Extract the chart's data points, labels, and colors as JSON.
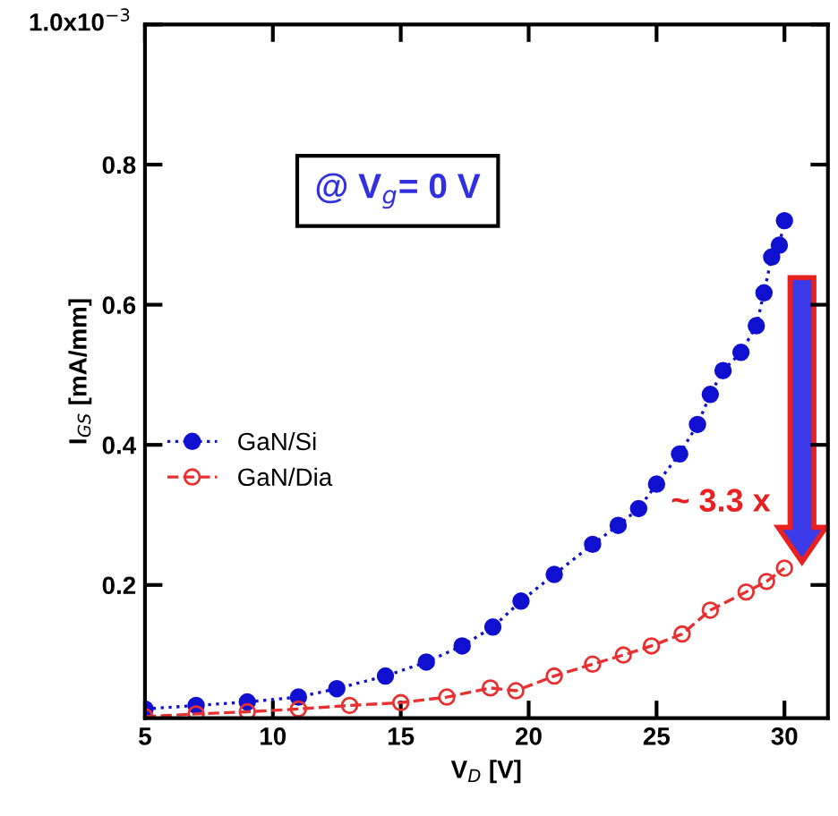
{
  "chart_data": {
    "type": "line",
    "xlabel": "V$_{D}$ [V]",
    "ylabel": "I$_{GS}$ [mA/mm]",
    "xlim": [
      5,
      31.7
    ],
    "xticks": [
      5,
      10,
      15,
      20,
      25,
      30
    ],
    "ylim": [
      0.01,
      1.0
    ],
    "yticks": [
      0.2,
      0.4,
      0.6,
      0.8,
      {
        "value": 1.0,
        "label": null
      }
    ],
    "grid": false,
    "legend": "left",
    "series": [
      {
        "name": "GaN/Si",
        "color": "#1010d0",
        "marker": "circle",
        "line_style": "dotted",
        "x": [
          5,
          7,
          9,
          11,
          12.5,
          14.4,
          16,
          17.4,
          18.6,
          19.7,
          21,
          22.5,
          23.5,
          24.3,
          25,
          25.9,
          26.6,
          27.1,
          27.6,
          28.3,
          28.9,
          29.2,
          29.5,
          29.8,
          30
        ],
        "values": [
          0.023,
          0.028,
          0.033,
          0.04,
          0.052,
          0.07,
          0.09,
          0.113,
          0.14,
          0.177,
          0.215,
          0.258,
          0.285,
          0.309,
          0.344,
          0.387,
          0.429,
          0.472,
          0.506,
          0.532,
          0.57,
          0.617,
          0.668,
          0.685,
          0.72
        ]
      },
      {
        "name": "GaN/Dia",
        "color": "#e83030",
        "marker": "circle_open",
        "line_style": "dashed",
        "x": [
          5,
          7,
          9,
          11,
          13,
          15,
          16.8,
          18.5,
          19.5,
          21,
          22.5,
          23.7,
          24.8,
          26,
          27.1,
          28.5,
          29.3,
          30
        ],
        "values": [
          0.012,
          0.016,
          0.019,
          0.023,
          0.028,
          0.032,
          0.04,
          0.053,
          0.049,
          0.07,
          0.087,
          0.1,
          0.113,
          0.13,
          0.164,
          0.19,
          0.205,
          0.224
        ]
      }
    ],
    "annotations": [
      "@ V$_{g}$= 0 V",
      "~ 3.3 x",
      "1.0x10$^{−3}$"
    ]
  }
}
